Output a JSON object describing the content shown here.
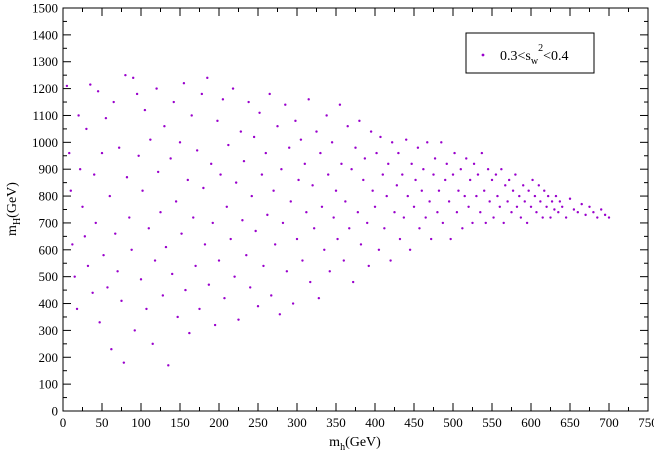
{
  "chart_data": {
    "type": "scatter",
    "xlim": [
      0,
      750
    ],
    "ylim": [
      0,
      1500
    ],
    "xticks": [
      0,
      50,
      100,
      150,
      200,
      250,
      300,
      350,
      400,
      450,
      500,
      550,
      600,
      650,
      700,
      750
    ],
    "yticks": [
      0,
      100,
      200,
      300,
      400,
      500,
      600,
      700,
      800,
      900,
      1000,
      1100,
      1200,
      1300,
      1400,
      1500
    ],
    "xlabel": {
      "main": "m",
      "sub": "h",
      "rest": "(GeV)"
    },
    "ylabel": {
      "main": "m",
      "sub": "H",
      "rest": "(GeV)"
    },
    "grid": false,
    "legend_position": "top-right",
    "series": [
      {
        "name": "0.3<s_w^2<0.4",
        "legend": {
          "a": "0.3<s",
          "sub": "w",
          "sup": "2",
          "b": "<0.4"
        },
        "color": "#9900cc",
        "marker": "dot",
        "points": [
          [
            5,
            1210
          ],
          [
            8,
            960
          ],
          [
            10,
            820
          ],
          [
            12,
            620
          ],
          [
            15,
            500
          ],
          [
            18,
            380
          ],
          [
            20,
            1100
          ],
          [
            22,
            900
          ],
          [
            25,
            760
          ],
          [
            28,
            650
          ],
          [
            30,
            1050
          ],
          [
            32,
            540
          ],
          [
            35,
            1215
          ],
          [
            38,
            440
          ],
          [
            40,
            880
          ],
          [
            42,
            700
          ],
          [
            45,
            1190
          ],
          [
            47,
            330
          ],
          [
            50,
            960
          ],
          [
            52,
            580
          ],
          [
            55,
            1090
          ],
          [
            57,
            460
          ],
          [
            60,
            800
          ],
          [
            62,
            230
          ],
          [
            65,
            1150
          ],
          [
            67,
            660
          ],
          [
            70,
            520
          ],
          [
            72,
            980
          ],
          [
            75,
            410
          ],
          [
            78,
            180
          ],
          [
            80,
            1250
          ],
          [
            82,
            870
          ],
          [
            85,
            720
          ],
          [
            88,
            600
          ],
          [
            90,
            1240
          ],
          [
            92,
            300
          ],
          [
            95,
            1180
          ],
          [
            97,
            950
          ],
          [
            100,
            490
          ],
          [
            102,
            820
          ],
          [
            105,
            1120
          ],
          [
            107,
            380
          ],
          [
            110,
            680
          ],
          [
            112,
            1010
          ],
          [
            115,
            250
          ],
          [
            118,
            560
          ],
          [
            120,
            1200
          ],
          [
            122,
            890
          ],
          [
            125,
            740
          ],
          [
            128,
            430
          ],
          [
            130,
            1060
          ],
          [
            132,
            610
          ],
          [
            135,
            170
          ],
          [
            138,
            940
          ],
          [
            140,
            510
          ],
          [
            142,
            1150
          ],
          [
            145,
            780
          ],
          [
            147,
            350
          ],
          [
            150,
            1000
          ],
          [
            152,
            660
          ],
          [
            155,
            1220
          ],
          [
            157,
            450
          ],
          [
            160,
            860
          ],
          [
            162,
            290
          ],
          [
            165,
            1100
          ],
          [
            167,
            720
          ],
          [
            170,
            540
          ],
          [
            172,
            970
          ],
          [
            175,
            380
          ],
          [
            178,
            1180
          ],
          [
            180,
            830
          ],
          [
            182,
            620
          ],
          [
            185,
            1240
          ],
          [
            187,
            470
          ],
          [
            190,
            920
          ],
          [
            192,
            700
          ],
          [
            195,
            320
          ],
          [
            198,
            1080
          ],
          [
            200,
            560
          ],
          [
            202,
            880
          ],
          [
            205,
            1160
          ],
          [
            207,
            420
          ],
          [
            210,
            760
          ],
          [
            212,
            990
          ],
          [
            215,
            640
          ],
          [
            218,
            1200
          ],
          [
            220,
            500
          ],
          [
            222,
            850
          ],
          [
            225,
            340
          ],
          [
            228,
            1040
          ],
          [
            230,
            710
          ],
          [
            232,
            930
          ],
          [
            235,
            580
          ],
          [
            238,
            1150
          ],
          [
            240,
            460
          ],
          [
            242,
            800
          ],
          [
            245,
            1020
          ],
          [
            247,
            670
          ],
          [
            250,
            390
          ],
          [
            252,
            1110
          ],
          [
            255,
            880
          ],
          [
            257,
            540
          ],
          [
            260,
            960
          ],
          [
            262,
            730
          ],
          [
            265,
            1180
          ],
          [
            267,
            430
          ],
          [
            270,
            820
          ],
          [
            272,
            620
          ],
          [
            275,
            1060
          ],
          [
            278,
            360
          ],
          [
            280,
            900
          ],
          [
            282,
            700
          ],
          [
            285,
            1140
          ],
          [
            287,
            520
          ],
          [
            290,
            980
          ],
          [
            292,
            780
          ],
          [
            295,
            400
          ],
          [
            298,
            1080
          ],
          [
            300,
            640
          ],
          [
            302,
            860
          ],
          [
            305,
            1010
          ],
          [
            307,
            560
          ],
          [
            310,
            920
          ],
          [
            312,
            740
          ],
          [
            315,
            1160
          ],
          [
            317,
            480
          ],
          [
            320,
            840
          ],
          [
            322,
            680
          ],
          [
            325,
            1040
          ],
          [
            328,
            420
          ],
          [
            330,
            960
          ],
          [
            332,
            760
          ],
          [
            335,
            600
          ],
          [
            338,
            1100
          ],
          [
            340,
            880
          ],
          [
            342,
            520
          ],
          [
            345,
            1000
          ],
          [
            347,
            720
          ],
          [
            350,
            820
          ],
          [
            352,
            640
          ],
          [
            355,
            1140
          ],
          [
            357,
            920
          ],
          [
            360,
            560
          ],
          [
            362,
            780
          ],
          [
            365,
            1060
          ],
          [
            367,
            680
          ],
          [
            370,
            900
          ],
          [
            372,
            480
          ],
          [
            375,
            980
          ],
          [
            378,
            740
          ],
          [
            380,
            1080
          ],
          [
            382,
            620
          ],
          [
            385,
            860
          ],
          [
            387,
            940
          ],
          [
            390,
            700
          ],
          [
            392,
            540
          ],
          [
            395,
            1040
          ],
          [
            397,
            820
          ],
          [
            400,
            760
          ],
          [
            402,
            960
          ],
          [
            405,
            600
          ],
          [
            407,
            1020
          ],
          [
            410,
            880
          ],
          [
            412,
            680
          ],
          [
            415,
            800
          ],
          [
            417,
            920
          ],
          [
            420,
            560
          ],
          [
            422,
            1000
          ],
          [
            425,
            740
          ],
          [
            428,
            840
          ],
          [
            430,
            960
          ],
          [
            432,
            640
          ],
          [
            435,
            880
          ],
          [
            437,
            720
          ],
          [
            440,
            1010
          ],
          [
            442,
            800
          ],
          [
            445,
            600
          ],
          [
            447,
            920
          ],
          [
            450,
            760
          ],
          [
            452,
            860
          ],
          [
            455,
            980
          ],
          [
            457,
            680
          ],
          [
            460,
            820
          ],
          [
            462,
            900
          ],
          [
            465,
            720
          ],
          [
            467,
            1000
          ],
          [
            470,
            780
          ],
          [
            472,
            640
          ],
          [
            475,
            880
          ],
          [
            477,
            940
          ],
          [
            480,
            740
          ],
          [
            482,
            820
          ],
          [
            485,
            1000
          ],
          [
            487,
            700
          ],
          [
            490,
            860
          ],
          [
            492,
            920
          ],
          [
            495,
            780
          ],
          [
            497,
            640
          ],
          [
            500,
            880
          ],
          [
            502,
            960
          ],
          [
            505,
            740
          ],
          [
            507,
            820
          ],
          [
            510,
            900
          ],
          [
            512,
            680
          ],
          [
            515,
            800
          ],
          [
            517,
            940
          ],
          [
            520,
            760
          ],
          [
            522,
            860
          ],
          [
            525,
            700
          ],
          [
            527,
            920
          ],
          [
            530,
            800
          ],
          [
            532,
            880
          ],
          [
            535,
            740
          ],
          [
            537,
            960
          ],
          [
            540,
            820
          ],
          [
            542,
            700
          ],
          [
            545,
            900
          ],
          [
            547,
            780
          ],
          [
            550,
            860
          ],
          [
            552,
            720
          ],
          [
            555,
            880
          ],
          [
            557,
            800
          ],
          [
            560,
            760
          ],
          [
            562,
            900
          ],
          [
            565,
            700
          ],
          [
            567,
            840
          ],
          [
            570,
            780
          ],
          [
            572,
            860
          ],
          [
            575,
            740
          ],
          [
            577,
            820
          ],
          [
            580,
            880
          ],
          [
            582,
            760
          ],
          [
            585,
            800
          ],
          [
            587,
            720
          ],
          [
            590,
            840
          ],
          [
            592,
            780
          ],
          [
            595,
            700
          ],
          [
            597,
            820
          ],
          [
            600,
            760
          ],
          [
            602,
            860
          ],
          [
            605,
            800
          ],
          [
            607,
            740
          ],
          [
            610,
            840
          ],
          [
            612,
            780
          ],
          [
            615,
            720
          ],
          [
            617,
            820
          ],
          [
            620,
            760
          ],
          [
            622,
            800
          ],
          [
            625,
            720
          ],
          [
            627,
            780
          ],
          [
            630,
            750
          ],
          [
            632,
            800
          ],
          [
            635,
            740
          ],
          [
            637,
            780
          ],
          [
            640,
            760
          ],
          [
            645,
            720
          ],
          [
            650,
            790
          ],
          [
            655,
            750
          ],
          [
            660,
            740
          ],
          [
            665,
            770
          ],
          [
            670,
            730
          ],
          [
            675,
            760
          ],
          [
            680,
            740
          ],
          [
            685,
            720
          ],
          [
            690,
            750
          ],
          [
            695,
            730
          ],
          [
            700,
            720
          ]
        ]
      }
    ]
  }
}
